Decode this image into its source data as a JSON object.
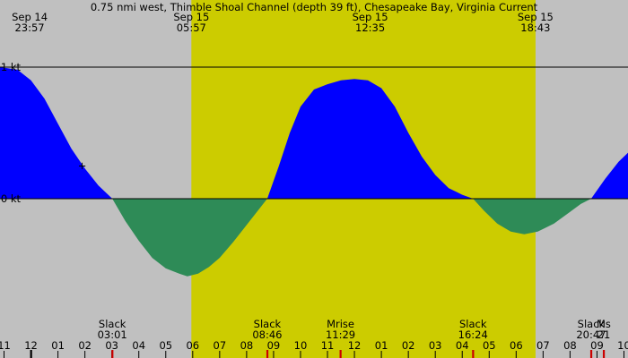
{
  "chart_data": {
    "type": "area",
    "title": "0.75 nmi west, Thimble Shoal Channel (depth 39 ft), Chesapeake Bay, Virginia Current",
    "ylabel_ticks": [
      {
        "value": 1,
        "label": "1 kt"
      },
      {
        "value": 0,
        "label": "0 kt"
      }
    ],
    "ylim": [
      -0.6,
      1.32
    ],
    "x_range_hours": [
      -1.15,
      22.15
    ],
    "daylight": [
      {
        "start": 5.95,
        "end": 18.72,
        "color": "#cccc00"
      }
    ],
    "colors": {
      "night": "#c0c0c0",
      "daylight": "#cccc00",
      "flood": "#0000ff",
      "ebb": "#2e8b57"
    },
    "top_labels": [
      {
        "hour": -0.05,
        "date": "Sep 14",
        "time": "23:57"
      },
      {
        "hour": 5.95,
        "date": "Sep 15",
        "time": "05:57"
      },
      {
        "hour": 12.583,
        "date": "Sep 15",
        "time": "12:35"
      },
      {
        "hour": 18.717,
        "date": "Sep 15",
        "time": "18:43"
      }
    ],
    "events": [
      {
        "hour": 3.017,
        "name": "Slack",
        "time": "03:01"
      },
      {
        "hour": 8.767,
        "name": "Slack",
        "time": "08:46"
      },
      {
        "hour": 11.483,
        "name": "Mrise",
        "time": "11:29"
      },
      {
        "hour": 16.4,
        "name": "Slack",
        "time": "16:24"
      },
      {
        "hour": 20.783,
        "name": "Slack",
        "time": "20:47"
      },
      {
        "hour": 21.25,
        "name": "Ms",
        "time": "21"
      }
    ],
    "hour_ticks": [
      {
        "hour": -1,
        "label": "11"
      },
      {
        "hour": 0,
        "label": "12"
      },
      {
        "hour": 1,
        "label": "01"
      },
      {
        "hour": 2,
        "label": "02"
      },
      {
        "hour": 3,
        "label": "03"
      },
      {
        "hour": 4,
        "label": "04"
      },
      {
        "hour": 5,
        "label": "05"
      },
      {
        "hour": 6,
        "label": "06"
      },
      {
        "hour": 7,
        "label": "07"
      },
      {
        "hour": 8,
        "label": "08"
      },
      {
        "hour": 9,
        "label": "09"
      },
      {
        "hour": 10,
        "label": "10"
      },
      {
        "hour": 11,
        "label": "11"
      },
      {
        "hour": 12,
        "label": "12"
      },
      {
        "hour": 13,
        "label": "01"
      },
      {
        "hour": 14,
        "label": "02"
      },
      {
        "hour": 15,
        "label": "03"
      },
      {
        "hour": 16,
        "label": "04"
      },
      {
        "hour": 17,
        "label": "05"
      },
      {
        "hour": 18,
        "label": "06"
      },
      {
        "hour": 19,
        "label": "07"
      },
      {
        "hour": 20,
        "label": "08"
      },
      {
        "hour": 21,
        "label": "09"
      },
      {
        "hour": 22,
        "label": "10"
      }
    ],
    "marker_ticks": [
      {
        "hour": 0,
        "color": "#000000"
      },
      {
        "hour": 3.017,
        "color": "#cc0000"
      },
      {
        "hour": 8.767,
        "color": "#cc0000"
      },
      {
        "hour": 11.483,
        "color": "#cc0000"
      },
      {
        "hour": 16.4,
        "color": "#cc0000"
      },
      {
        "hour": 20.783,
        "color": "#cc0000"
      },
      {
        "hour": 21.25,
        "color": "#cc0000"
      }
    ],
    "now_marker": {
      "hour": 1.9,
      "symbol": "+"
    },
    "series": [
      {
        "points": [
          [
            -1.15,
            1.0
          ],
          [
            -0.5,
            0.98
          ],
          [
            0,
            0.9
          ],
          [
            0.5,
            0.76
          ],
          [
            1,
            0.57
          ],
          [
            1.5,
            0.38
          ],
          [
            2,
            0.23
          ],
          [
            2.5,
            0.1
          ],
          [
            3.017,
            0.0
          ],
          [
            3.5,
            -0.17
          ],
          [
            4,
            -0.32
          ],
          [
            4.5,
            -0.45
          ],
          [
            5,
            -0.53
          ],
          [
            5.5,
            -0.57
          ],
          [
            5.8,
            -0.59
          ],
          [
            6.2,
            -0.57
          ],
          [
            6.6,
            -0.52
          ],
          [
            7,
            -0.45
          ],
          [
            7.5,
            -0.33
          ],
          [
            8,
            -0.2
          ],
          [
            8.767,
            0.0
          ],
          [
            9.2,
            0.25
          ],
          [
            9.6,
            0.5
          ],
          [
            10,
            0.7
          ],
          [
            10.5,
            0.83
          ],
          [
            11,
            0.87
          ],
          [
            11.5,
            0.9
          ],
          [
            12,
            0.91
          ],
          [
            12.5,
            0.9
          ],
          [
            13,
            0.84
          ],
          [
            13.5,
            0.7
          ],
          [
            14,
            0.5
          ],
          [
            14.5,
            0.32
          ],
          [
            15,
            0.18
          ],
          [
            15.5,
            0.08
          ],
          [
            16,
            0.03
          ],
          [
            16.4,
            0.0
          ],
          [
            16.8,
            -0.09
          ],
          [
            17.3,
            -0.19
          ],
          [
            17.8,
            -0.25
          ],
          [
            18.3,
            -0.27
          ],
          [
            18.8,
            -0.25
          ],
          [
            19.4,
            -0.19
          ],
          [
            20,
            -0.1
          ],
          [
            20.4,
            -0.04
          ],
          [
            20.783,
            0.0
          ],
          [
            21.3,
            0.15
          ],
          [
            21.8,
            0.28
          ],
          [
            22.15,
            0.35
          ]
        ]
      }
    ]
  }
}
